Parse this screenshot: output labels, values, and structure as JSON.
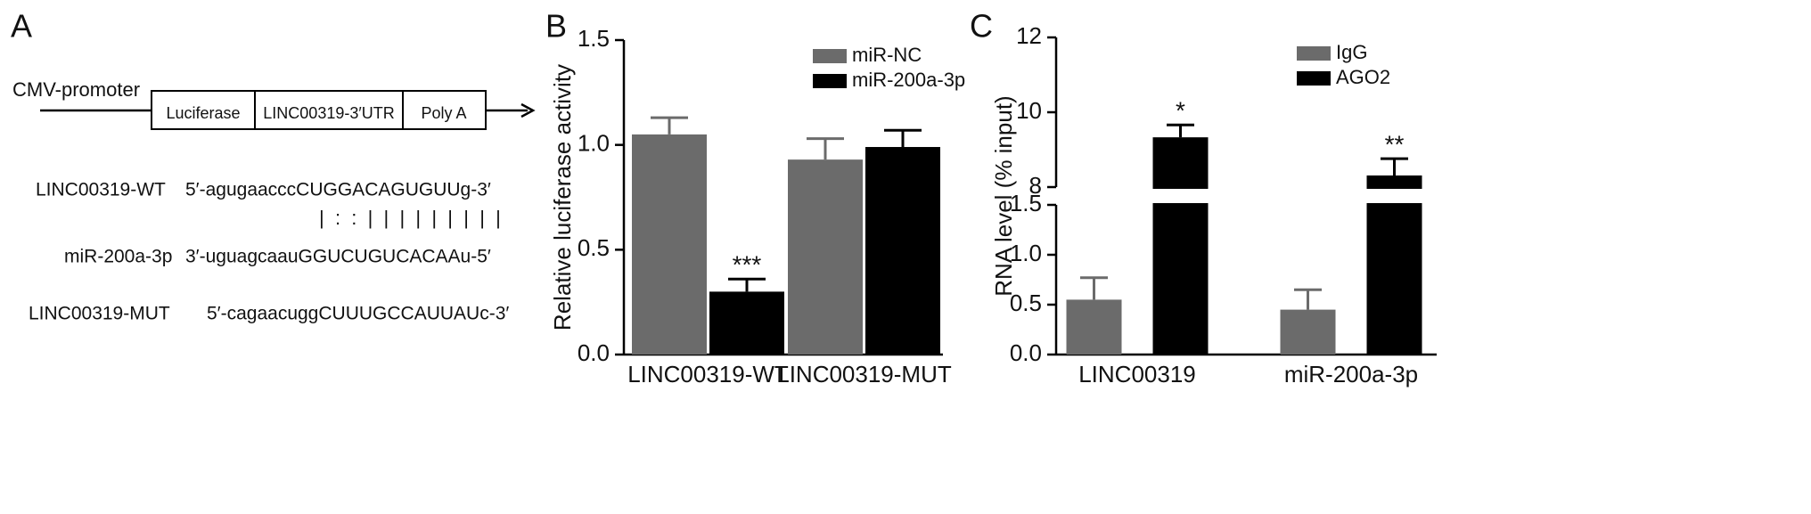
{
  "diagram": {
    "panel_label": "A",
    "promoter": "CMV-promoter",
    "boxes": [
      "Luciferase",
      "LINC00319-3′UTR",
      "Poly A"
    ],
    "sequences": [
      {
        "name": "LINC00319-WT",
        "sequence": "5′-agugaacccCUGGACAGUGUUg-3′"
      },
      {
        "name": "miR-200a-3p",
        "sequence": "3′-uguagcaauGGUCUGUCACAAu-5′"
      },
      {
        "name": "LINC00319-MUT",
        "sequence": "5′-cagaacuggCUUUGCCAUUAUc-3′"
      }
    ],
    "pairing": "|  :  :  |  |  |  |  |  |  |  |  |"
  },
  "chart_data": [
    {
      "type": "bar",
      "panel_label": "B",
      "ylabel": "Relative luciferase activity",
      "categories": [
        "LINC00319-WT",
        "LINC00319-MUT"
      ],
      "series": [
        {
          "name": "miR-NC",
          "color": "#6b6b6b",
          "values": [
            1.05,
            0.93
          ],
          "errors": [
            0.08,
            0.1
          ]
        },
        {
          "name": "miR-200a-3p",
          "color": "#000000",
          "values": [
            0.3,
            0.99
          ],
          "errors": [
            0.06,
            0.08
          ],
          "significance": [
            "***",
            null
          ]
        }
      ],
      "ylim": [
        0,
        1.5
      ],
      "yticks": [
        {
          "value": 0,
          "label": "0.0"
        },
        0.5,
        {
          "value": 1,
          "label": "1.0"
        },
        1.5
      ],
      "legend": "upper right"
    },
    {
      "type": "bar",
      "panel_label": "C",
      "ylabel": "RNA level (% input)",
      "categories": [
        "LINC00319",
        "miR-200a-3p"
      ],
      "series": [
        {
          "name": "IgG",
          "color": "#6b6b6b",
          "values": [
            0.55,
            0.45
          ],
          "errors": [
            0.22,
            0.2
          ]
        },
        {
          "name": "AGO2",
          "color": "#000000",
          "values": [
            9.33,
            8.31
          ],
          "errors": [
            0.33,
            0.45
          ],
          "significance": [
            "*",
            "**"
          ]
        }
      ],
      "ylim": [
        0,
        12
      ],
      "ybreak": [
        1.5,
        8
      ],
      "yticks": [
        {
          "value": 0,
          "label": "0.0"
        },
        0.5,
        {
          "value": 1,
          "label": "1.0"
        },
        1.5,
        8,
        10,
        12
      ],
      "legend": "upper right"
    }
  ]
}
